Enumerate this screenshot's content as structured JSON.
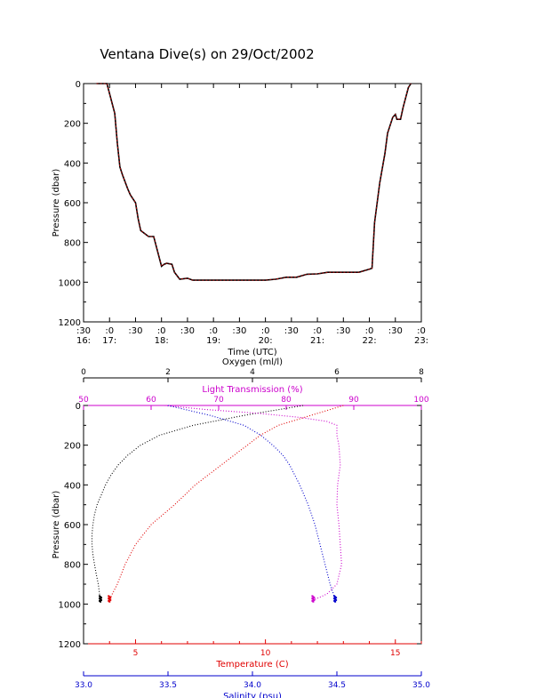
{
  "title": "Ventana Dive(s) on 29/Oct/2002",
  "colors": {
    "axis": "#000000",
    "depth_trace": "#cc0000",
    "oxygen": "#000000",
    "light_transmission": "#cc00cc",
    "temperature": "#e00000",
    "salinity": "#0000cc"
  },
  "chart_data": [
    {
      "type": "line",
      "title": "Ventana Dive(s) on 29/Oct/2002",
      "xlabel": "Time (UTC)",
      "ylabel": "Pressure (dbar)",
      "ylim": [
        1200,
        0
      ],
      "yticks": [
        "0",
        "200",
        "400",
        "600",
        "800",
        "1000",
        "1200"
      ],
      "xticks": [
        {
          "top": ":30",
          "bottom": "16:"
        },
        {
          "top": ":0",
          "bottom": "17:"
        },
        {
          "top": ":30",
          "bottom": ""
        },
        {
          "top": ":0",
          "bottom": "18:"
        },
        {
          "top": ":30",
          "bottom": ""
        },
        {
          "top": ":0",
          "bottom": "19:"
        },
        {
          "top": ":30",
          "bottom": ""
        },
        {
          "top": ":0",
          "bottom": "20:"
        },
        {
          "top": ":30",
          "bottom": ""
        },
        {
          "top": ":0",
          "bottom": "21:"
        },
        {
          "top": ":30",
          "bottom": ""
        },
        {
          "top": ":0",
          "bottom": "22:"
        },
        {
          "top": ":30",
          "bottom": ""
        },
        {
          "top": ":0",
          "bottom": "23:"
        }
      ],
      "series": [
        {
          "x_hours": [
            16.75,
            16.95,
            17.1,
            17.15,
            17.2,
            17.25,
            17.35,
            17.4,
            17.5,
            17.55,
            17.6,
            17.75,
            17.85,
            18.0,
            18.05,
            18.1,
            18.2,
            18.25,
            18.35,
            18.5,
            18.6,
            19.0,
            19.5,
            20.0,
            20.2,
            20.4,
            20.6,
            20.8,
            21.0,
            21.2,
            21.4,
            21.6,
            21.8,
            22.0,
            22.05,
            22.1,
            22.2,
            22.3,
            22.35,
            22.45,
            22.5,
            22.53,
            22.6,
            22.65,
            22.75,
            22.8
          ],
          "pressure": [
            0,
            0,
            150,
            300,
            420,
            460,
            530,
            560,
            600,
            680,
            740,
            770,
            770,
            920,
            910,
            905,
            910,
            950,
            985,
            980,
            990,
            990,
            990,
            990,
            985,
            975,
            975,
            960,
            958,
            950,
            950,
            950,
            950,
            935,
            930,
            700,
            500,
            350,
            250,
            170,
            155,
            180,
            180,
            120,
            20,
            0
          ]
        }
      ]
    },
    {
      "type": "scatter",
      "ylabel": "Pressure (dbar)",
      "ylim": [
        1200,
        0
      ],
      "yticks": [
        "0",
        "200",
        "400",
        "600",
        "800",
        "1000",
        "1200"
      ],
      "axes": [
        {
          "name": "Oxygen (ml/l)",
          "position": "top",
          "range": [
            0,
            8
          ],
          "ticks": [
            "0",
            "2",
            "4",
            "6",
            "8"
          ]
        },
        {
          "name": "Light Transmission (%)",
          "position": "top",
          "range": [
            50,
            100
          ],
          "ticks": [
            "50",
            "60",
            "70",
            "80",
            "90",
            "100"
          ]
        },
        {
          "name": "Temperature (C)",
          "position": "bottom",
          "range": [
            3,
            16
          ],
          "ticks": [
            "5",
            "10",
            "15"
          ]
        },
        {
          "name": "Salinity (psu)",
          "position": "bottom",
          "range": [
            33.0,
            35.0
          ],
          "ticks": [
            "33.0",
            "33.5",
            "34.0",
            "34.5",
            "35.0"
          ]
        }
      ],
      "series": [
        {
          "name": "Oxygen (ml/l)",
          "axis": 0,
          "pressure": [
            0,
            50,
            100,
            150,
            200,
            250,
            300,
            350,
            400,
            450,
            500,
            550,
            600,
            650,
            700,
            750,
            800,
            850,
            900,
            950,
            980
          ],
          "values": [
            5.2,
            3.8,
            2.6,
            1.8,
            1.35,
            1.05,
            0.82,
            0.65,
            0.52,
            0.42,
            0.32,
            0.26,
            0.22,
            0.2,
            0.2,
            0.22,
            0.26,
            0.3,
            0.35,
            0.38,
            0.4
          ]
        },
        {
          "name": "Light Transmission (%)",
          "axis": 1,
          "pressure": [
            0,
            20,
            40,
            60,
            80,
            100,
            150,
            200,
            300,
            400,
            500,
            600,
            700,
            800,
            900,
            950,
            980
          ],
          "values": [
            62,
            68,
            76,
            82,
            86,
            87.5,
            87.5,
            87.8,
            88,
            87.6,
            87.5,
            87.8,
            88,
            88.2,
            87.5,
            86,
            84
          ]
        },
        {
          "name": "Temperature (C)",
          "axis": 2,
          "pressure": [
            0,
            20,
            40,
            60,
            80,
            100,
            150,
            200,
            250,
            300,
            400,
            500,
            600,
            700,
            800,
            900,
            950,
            980
          ],
          "values": [
            13.0,
            12.5,
            12.0,
            11.5,
            11.0,
            10.5,
            9.8,
            9.3,
            8.8,
            8.3,
            7.3,
            6.5,
            5.6,
            5.0,
            4.6,
            4.3,
            4.1,
            4.0
          ]
        },
        {
          "name": "Salinity (psu)",
          "axis": 3,
          "pressure": [
            0,
            50,
            100,
            150,
            200,
            250,
            300,
            400,
            500,
            600,
            700,
            800,
            900,
            950,
            980
          ],
          "values": [
            33.5,
            33.75,
            33.95,
            34.05,
            34.12,
            34.18,
            34.22,
            34.28,
            34.33,
            34.37,
            34.4,
            34.43,
            34.46,
            34.48,
            34.49
          ]
        }
      ]
    }
  ]
}
